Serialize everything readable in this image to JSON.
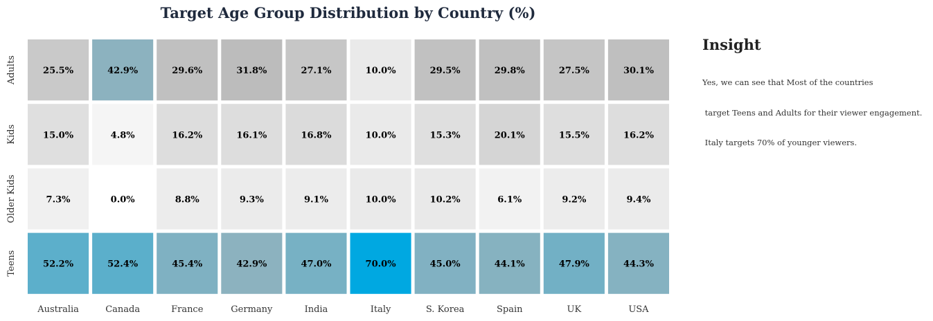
{
  "chart_data": {
    "type": "heatmap",
    "title": "Target Age Group Distribution by Country (%)",
    "xlabel": "",
    "ylabel": "",
    "x_categories": [
      "Australia",
      "Canada",
      "France",
      "Germany",
      "India",
      "Italy",
      "S. Korea",
      "Spain",
      "UK",
      "USA"
    ],
    "y_categories": [
      "Adults",
      "Kids",
      "Older Kids",
      "Teens"
    ],
    "values": [
      [
        25.5,
        42.9,
        29.6,
        31.8,
        27.1,
        10.0,
        29.5,
        29.8,
        27.5,
        30.1
      ],
      [
        15.0,
        4.8,
        16.2,
        16.1,
        16.8,
        10.0,
        15.3,
        20.1,
        15.5,
        16.2
      ],
      [
        7.3,
        0.0,
        8.8,
        9.3,
        9.1,
        10.0,
        10.2,
        6.1,
        9.2,
        9.4
      ],
      [
        52.2,
        52.4,
        45.4,
        42.9,
        47.0,
        70.0,
        45.0,
        44.1,
        47.9,
        44.3
      ]
    ],
    "value_labels": [
      [
        "25.5%",
        "42.9%",
        "29.6%",
        "31.8%",
        "27.1%",
        "10.0%",
        "29.5%",
        "29.8%",
        "27.5%",
        "30.1%"
      ],
      [
        "15.0%",
        "4.8%",
        "16.2%",
        "16.1%",
        "16.8%",
        "10.0%",
        "15.3%",
        "20.1%",
        "15.5%",
        "16.2%"
      ],
      [
        "7.3%",
        "0.0%",
        "8.8%",
        "9.3%",
        "9.1%",
        "10.0%",
        "10.2%",
        "6.1%",
        "9.2%",
        "9.4%"
      ],
      [
        "52.2%",
        "52.4%",
        "45.4%",
        "42.9%",
        "47.0%",
        "70.0%",
        "45.0%",
        "44.1%",
        "47.9%",
        "44.3%"
      ]
    ],
    "colormap": {
      "low": "#ffffff",
      "mid": "#b5b5b5",
      "high": "#00a8e1"
    },
    "legend": "none"
  },
  "insight": {
    "heading": "Insight",
    "lines": [
      "Yes, we can see that Most of the countries",
      " target Teens and Adults for their viewer engagement.",
      " Italy targets 70% of younger viewers."
    ]
  }
}
